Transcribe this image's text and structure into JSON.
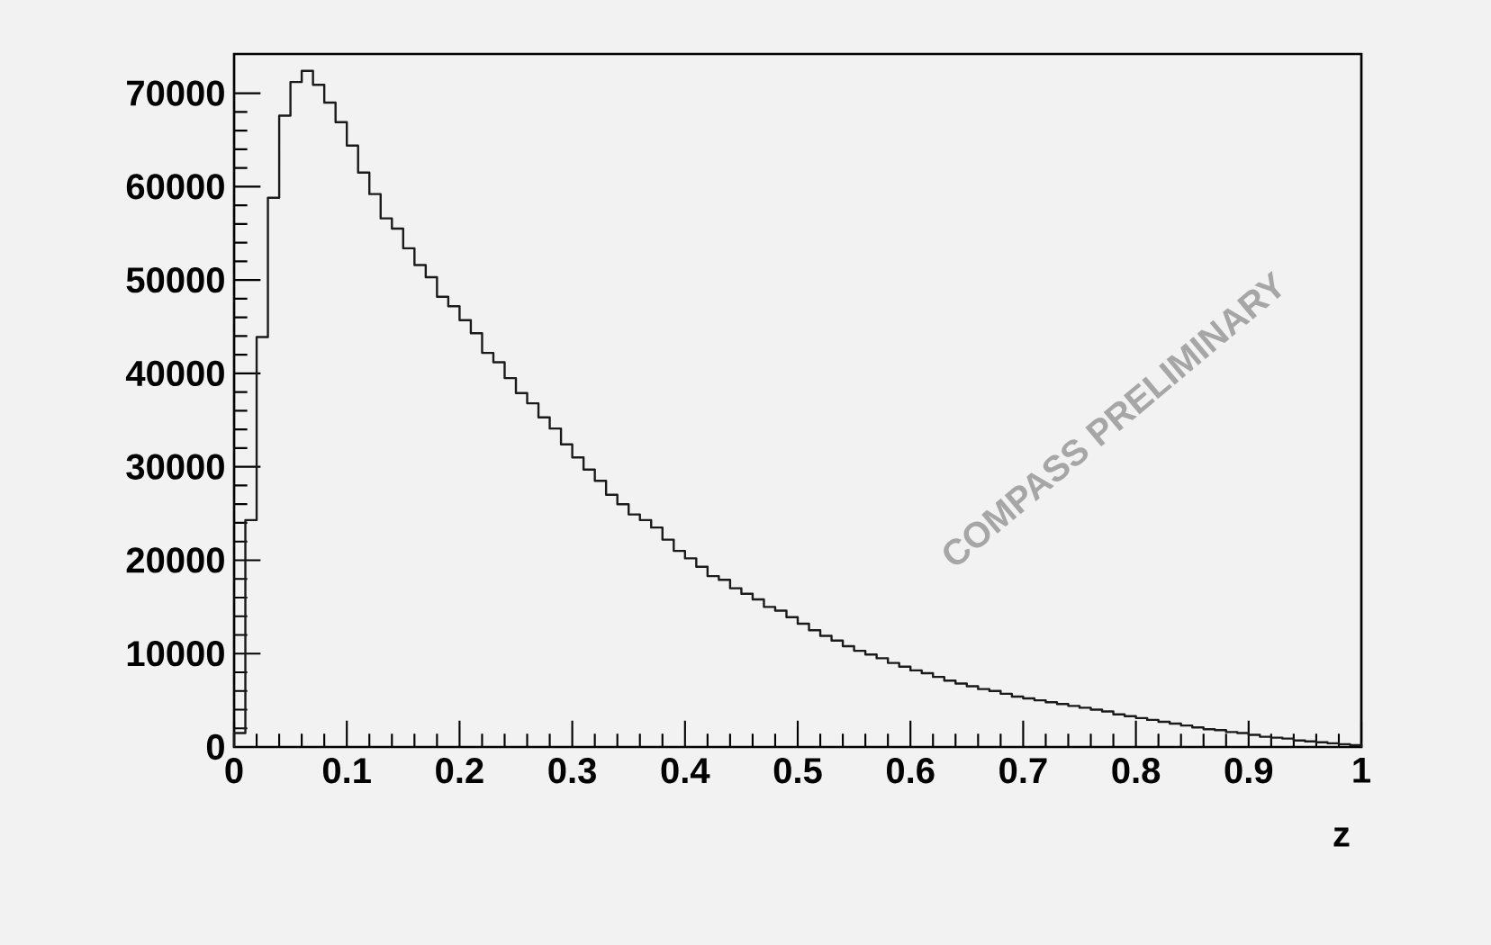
{
  "chart_data": {
    "type": "histogram",
    "xlabel": "z",
    "annotations": [
      "COMPASS PRELIMINARY"
    ],
    "color": "#1a1a1a",
    "bins": [
      0,
      0.01,
      0.02,
      0.03,
      0.04,
      0.05,
      0.06,
      0.07,
      0.08,
      0.09,
      0.1,
      0.11,
      0.12,
      0.13,
      0.14,
      0.15,
      0.16,
      0.17,
      0.18,
      0.19,
      0.2,
      0.21,
      0.22,
      0.23,
      0.24,
      0.25,
      0.26,
      0.27,
      0.28,
      0.29,
      0.3,
      0.31,
      0.32,
      0.33,
      0.34,
      0.35,
      0.36,
      0.37,
      0.38,
      0.39,
      0.4,
      0.41,
      0.42,
      0.43,
      0.44,
      0.45,
      0.46,
      0.47,
      0.48,
      0.49,
      0.5,
      0.51,
      0.52,
      0.53,
      0.54,
      0.55,
      0.56,
      0.57,
      0.58,
      0.59,
      0.6,
      0.61,
      0.62,
      0.63,
      0.64,
      0.65,
      0.66,
      0.67,
      0.68,
      0.69,
      0.7,
      0.71,
      0.72,
      0.73,
      0.74,
      0.75,
      0.76,
      0.77,
      0.78,
      0.79,
      0.8,
      0.81,
      0.82,
      0.83,
      0.84,
      0.85,
      0.86,
      0.87,
      0.88,
      0.89,
      0.9,
      0.91,
      0.92,
      0.93,
      0.94,
      0.95,
      0.96,
      0.97,
      0.98,
      0.99,
      1
    ],
    "values": [
      1500,
      24300,
      43900,
      58800,
      67600,
      71200,
      72400,
      70900,
      69000,
      66900,
      64400,
      61500,
      59200,
      56600,
      55500,
      53400,
      51600,
      50300,
      48200,
      47200,
      45700,
      44300,
      42200,
      41200,
      39500,
      37900,
      36800,
      35300,
      34100,
      32400,
      31000,
      29700,
      28500,
      27000,
      26000,
      24900,
      24300,
      23500,
      22200,
      21000,
      20200,
      19300,
      18300,
      17900,
      17000,
      16400,
      15800,
      15000,
      14600,
      13900,
      13200,
      12500,
      11900,
      11400,
      10800,
      10300,
      9900,
      9500,
      9000,
      8600,
      8200,
      7900,
      7500,
      7100,
      6800,
      6500,
      6200,
      6000,
      5700,
      5400,
      5200,
      5000,
      4800,
      4600,
      4400,
      4200,
      4000,
      3800,
      3500,
      3300,
      3100,
      2900,
      2700,
      2500,
      2300,
      2100,
      1900,
      1800,
      1600,
      1500,
      1300,
      1100,
      1000,
      900,
      700,
      600,
      500,
      400,
      300,
      200
    ],
    "xlim": [
      0,
      1
    ],
    "ylim": [
      0,
      74200
    ],
    "xticks": [
      0,
      0.1,
      0.2,
      0.3,
      0.4,
      0.5,
      0.6,
      0.7,
      0.8,
      0.9,
      1
    ],
    "yticks": [
      0,
      10000,
      20000,
      30000,
      40000,
      50000,
      60000,
      70000
    ]
  }
}
